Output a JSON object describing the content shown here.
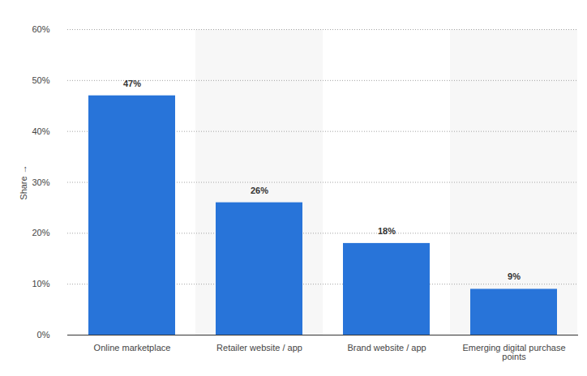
{
  "chart_data": {
    "type": "bar",
    "categories": [
      "Online marketplace",
      "Retailer website / app",
      "Brand website / app",
      "Emerging digital purchase points"
    ],
    "values": [
      47,
      26,
      18,
      9
    ],
    "value_labels": [
      "47%",
      "26%",
      "18%",
      "9%"
    ],
    "color": "#2874d9",
    "ylabel": "Share",
    "ylim": [
      0,
      60
    ],
    "yticks": [
      {
        "value": 0,
        "label": "0%"
      },
      {
        "value": 10,
        "label": "10%"
      },
      {
        "value": 20,
        "label": "20%"
      },
      {
        "value": 30,
        "label": "30%"
      },
      {
        "value": 40,
        "label": "40%"
      },
      {
        "value": 50,
        "label": "50%"
      },
      {
        "value": 60,
        "label": "60%"
      }
    ],
    "grid": true,
    "data_labels": true
  }
}
